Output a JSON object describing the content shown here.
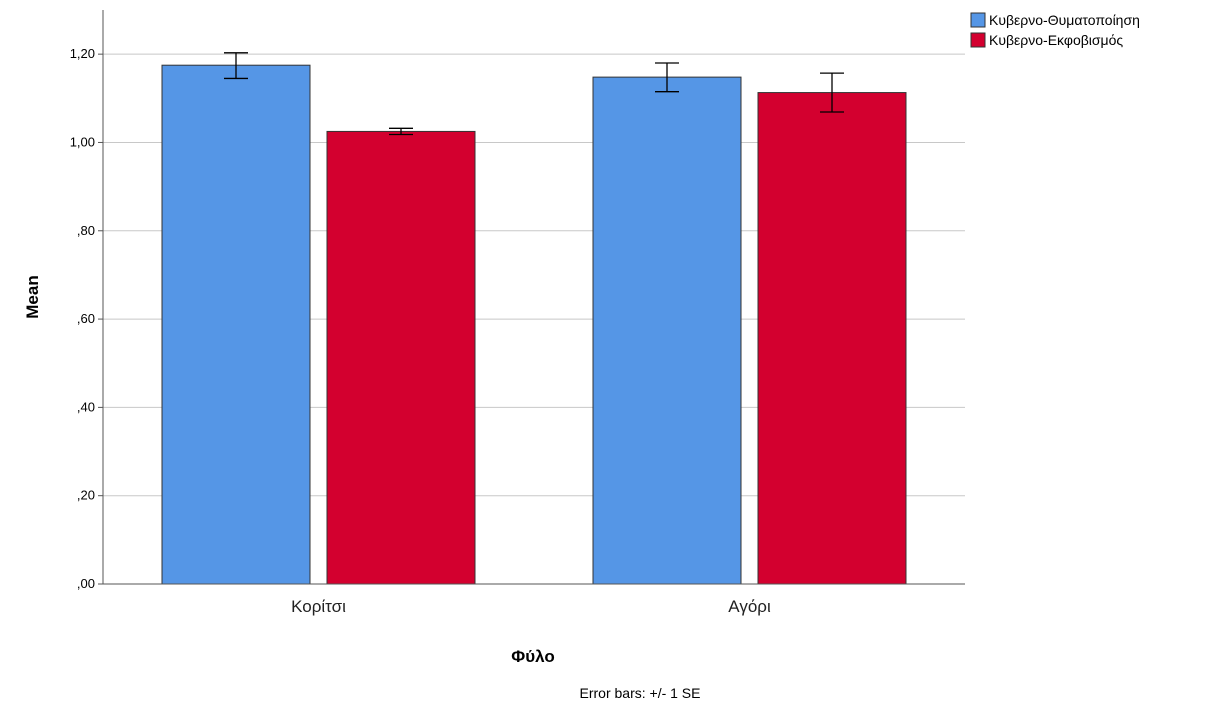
{
  "chart_data": {
    "type": "bar",
    "categories": [
      "Κορίτσι",
      "Αγόρι"
    ],
    "series": [
      {
        "name": "Κυβερνο-Θυματοποίηση",
        "color": "#5596E6",
        "values": [
          1.175,
          1.148
        ],
        "error_low": [
          1.145,
          1.115
        ],
        "error_high": [
          1.203,
          1.18
        ]
      },
      {
        "name": "Κυβερνο-Εκφοβισμός",
        "color": "#D3002F",
        "values": [
          1.025,
          1.113
        ],
        "error_low": [
          1.018,
          1.069
        ],
        "error_high": [
          1.032,
          1.157
        ]
      }
    ],
    "ylim": [
      0,
      1.3
    ],
    "yticks": [
      0,
      0.2,
      0.4,
      0.6,
      0.8,
      1.0,
      1.2
    ],
    "ytick_labels": [
      ",00",
      ",20",
      ",40",
      ",60",
      ",80",
      "1,00",
      "1,20"
    ],
    "xlabel": "Φύλο",
    "ylabel": "Mean",
    "note": "Error bars: +/- 1 SE",
    "grid": true,
    "legend_position": "top-right"
  }
}
